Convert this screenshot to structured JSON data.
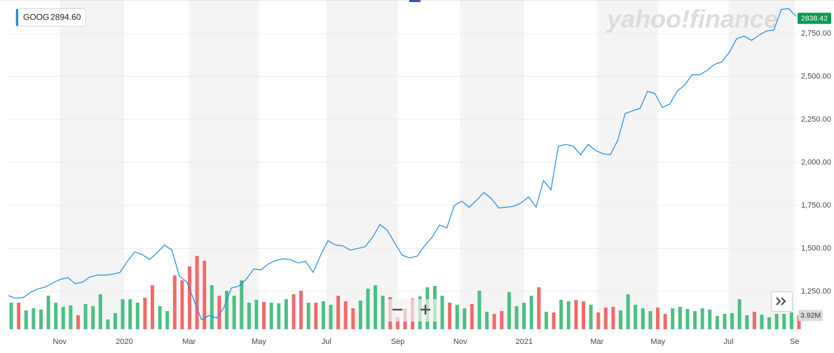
{
  "chart_data": {
    "type": "line",
    "watermark": "yahoo!finance",
    "legend_value": "2894.60",
    "last_price": 2838.42,
    "last_price_color": "#0b9b50",
    "x": [
      0,
      1,
      2,
      3,
      4,
      5,
      6,
      7,
      8,
      9,
      10,
      11,
      12,
      13,
      14,
      15,
      16,
      17,
      18,
      19,
      20,
      21,
      22,
      23,
      24,
      25,
      26,
      27,
      28,
      29,
      30,
      31,
      32,
      33,
      34,
      35,
      36,
      37,
      38,
      39,
      40,
      41,
      42,
      43,
      44,
      45,
      46,
      47,
      48,
      49,
      50,
      51,
      52,
      53,
      54,
      55,
      56,
      57,
      58,
      59,
      60,
      61,
      62,
      63,
      64,
      65,
      66,
      67,
      68,
      69,
      70,
      71,
      72,
      73,
      74,
      75,
      76,
      77,
      78,
      79,
      80,
      81,
      82,
      83,
      84,
      85,
      86,
      87,
      88,
      89,
      90,
      91,
      92,
      93,
      94,
      95,
      96,
      97,
      98,
      99,
      100,
      101,
      102,
      103,
      104,
      105,
      106
    ],
    "series": [
      {
        "name": "GOOG",
        "color": "#1e88e5",
        "values": [
          1225,
          1210,
          1215,
          1245,
          1265,
          1275,
          1300,
          1320,
          1330,
          1295,
          1305,
          1335,
          1345,
          1345,
          1350,
          1360,
          1425,
          1480,
          1465,
          1435,
          1475,
          1520,
          1490,
          1340,
          1305,
          1195,
          1085,
          1110,
          1095,
          1155,
          1270,
          1280,
          1320,
          1380,
          1375,
          1410,
          1430,
          1440,
          1435,
          1415,
          1425,
          1360,
          1460,
          1545,
          1520,
          1515,
          1490,
          1500,
          1510,
          1565,
          1640,
          1605,
          1530,
          1460,
          1445,
          1455,
          1515,
          1565,
          1635,
          1620,
          1750,
          1775,
          1740,
          1780,
          1825,
          1790,
          1735,
          1740,
          1745,
          1765,
          1800,
          1740,
          1895,
          1840,
          2095,
          2105,
          2095,
          2045,
          2105,
          2070,
          2050,
          2045,
          2130,
          2285,
          2300,
          2315,
          2415,
          2400,
          2320,
          2340,
          2415,
          2450,
          2510,
          2510,
          2535,
          2570,
          2585,
          2640,
          2720,
          2735,
          2710,
          2740,
          2765,
          2770,
          2890,
          2895,
          2850
        ]
      }
    ],
    "volume": {
      "up_color": "#4cbf83",
      "down_color": "#f06a6a",
      "vlim": [
        0,
        24
      ],
      "last_label": "3.92M",
      "values": [
        7.6,
        7.6,
        5.4,
        6,
        5.6,
        9.6,
        7.6,
        6.4,
        6.8,
        4,
        7.2,
        6.6,
        10,
        2.8,
        4.6,
        8.6,
        8.6,
        7.6,
        9,
        12.6,
        6.6,
        5.2,
        15.4,
        14,
        18,
        21,
        19.6,
        12.6,
        9.6,
        11,
        9.6,
        14,
        7.6,
        8.4,
        7.8,
        7.6,
        7.4,
        8.6,
        10,
        11,
        7.6,
        7.6,
        8,
        7,
        9.6,
        8,
        6,
        8.2,
        11.6,
        12.6,
        9.6,
        9.2,
        3.4,
        6,
        8.8,
        9.4,
        12,
        12.4,
        9.6,
        7.6,
        7,
        6,
        7.2,
        11,
        5,
        4.4,
        5.2,
        10.6,
        6.6,
        7.6,
        9.6,
        12,
        5,
        4.8,
        8.4,
        8,
        8.4,
        8,
        7,
        4.8,
        6.2,
        6.4,
        5.4,
        10,
        7,
        6,
        5.2,
        6.2,
        4.4,
        6,
        6.4,
        5.8,
        5.2,
        6,
        5.6,
        3.8,
        4.4,
        4.6,
        8.6,
        4,
        5,
        4.2,
        3.4,
        4.4,
        4.4,
        4.8,
        3.92
      ]
    },
    "xlim": [
      0,
      106
    ],
    "xticks": [
      {
        "value": 6.9,
        "label": "Nov"
      },
      {
        "value": 15.6,
        "label": "2020"
      },
      {
        "value": 24.3,
        "label": "Mar"
      },
      {
        "value": 33.7,
        "label": "May"
      },
      {
        "value": 42.8,
        "label": "Jul"
      },
      {
        "value": 52.4,
        "label": "Sep"
      },
      {
        "value": 60.8,
        "label": "Nov"
      },
      {
        "value": 69.4,
        "label": "2021"
      },
      {
        "value": 79.2,
        "label": "Mar"
      },
      {
        "value": 87.4,
        "label": "May"
      },
      {
        "value": 96.9,
        "label": "Jul"
      },
      {
        "value": 105.8,
        "label": "Se"
      }
    ],
    "ylim": [
      1030,
      2945
    ],
    "yticks": [
      {
        "value": 1250,
        "label": "1,250.00"
      },
      {
        "value": 1500,
        "label": "1,500.00"
      },
      {
        "value": 1750,
        "label": "1,750.00"
      },
      {
        "value": 2000,
        "label": "2,000.00"
      },
      {
        "value": 2250,
        "label": "2,250.00"
      },
      {
        "value": 2500,
        "label": "2,500.00"
      },
      {
        "value": 2750,
        "label": "2,750.00"
      }
    ],
    "grid": true,
    "band_color": "#f4f4f4"
  }
}
